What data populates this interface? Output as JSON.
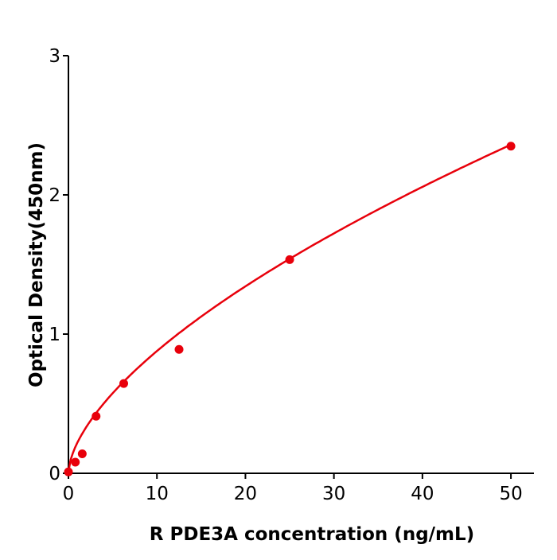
{
  "chart_data": {
    "type": "scatter",
    "title": "",
    "xlabel": "R  PDE3A concentration (ng/mL)",
    "ylabel": "Optical Density(450nm)",
    "xlim": [
      0,
      52.6
    ],
    "ylim": [
      0,
      3
    ],
    "xticks": [
      "0",
      "10",
      "20",
      "30",
      "40",
      "50"
    ],
    "yticks": [
      "0",
      "1",
      "2",
      "3"
    ],
    "grid": false,
    "legend": "none",
    "color": "#e8000b",
    "fit_line": true,
    "series": [
      {
        "x": [
          0,
          0.78,
          1.56,
          3.125,
          6.25,
          12.5,
          25,
          50
        ],
        "y": [
          0.01,
          0.08,
          0.14,
          0.41,
          0.645,
          0.89,
          1.535,
          2.35
        ]
      }
    ]
  }
}
